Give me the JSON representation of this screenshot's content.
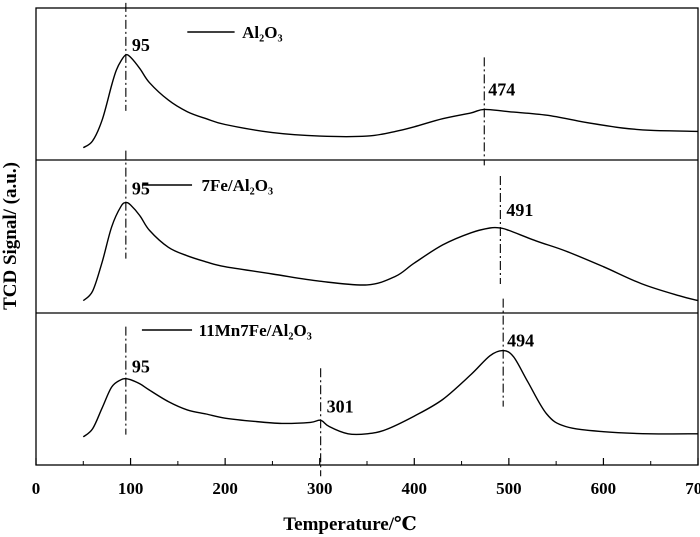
{
  "chart_data": {
    "type": "line",
    "title": "",
    "xlabel": "Temperature/℃",
    "ylabel": "TCD Signal/ (a.u.)",
    "xlim": [
      0,
      700
    ],
    "x_ticks": [
      "0",
      "100",
      "200",
      "300",
      "400",
      "500",
      "600",
      "700"
    ],
    "grid": false,
    "legend_placement": "top-left of each panel",
    "panels": [
      {
        "legend": "Al₂O₃",
        "peaks": [
          {
            "x": 95,
            "label": "95"
          },
          {
            "x": 474,
            "label": "474"
          }
        ],
        "series": {
          "name": "Al₂O₃",
          "x": [
            50,
            60,
            70,
            80,
            85,
            90,
            95,
            100,
            110,
            120,
            140,
            160,
            180,
            200,
            250,
            300,
            350,
            380,
            400,
            430,
            460,
            474,
            500,
            540,
            580,
            620,
            650,
            700
          ],
          "y": [
            0.02,
            0.08,
            0.26,
            0.56,
            0.69,
            0.77,
            0.82,
            0.8,
            0.7,
            0.58,
            0.43,
            0.33,
            0.27,
            0.22,
            0.15,
            0.12,
            0.12,
            0.16,
            0.2,
            0.27,
            0.32,
            0.35,
            0.33,
            0.3,
            0.24,
            0.19,
            0.17,
            0.16
          ]
        }
      },
      {
        "legend": "7Fe/Al₂O₃",
        "peaks": [
          {
            "x": 95,
            "label": "95"
          },
          {
            "x": 491,
            "label": "491"
          }
        ],
        "series": {
          "name": "7Fe/Al₂O₃",
          "x": [
            50,
            60,
            70,
            80,
            90,
            95,
            100,
            110,
            120,
            140,
            160,
            180,
            200,
            250,
            300,
            350,
            380,
            400,
            430,
            460,
            480,
            491,
            500,
            530,
            560,
            600,
            640,
            680,
            700
          ],
          "y": [
            0.02,
            0.1,
            0.34,
            0.63,
            0.8,
            0.83,
            0.81,
            0.72,
            0.6,
            0.46,
            0.39,
            0.34,
            0.3,
            0.24,
            0.18,
            0.15,
            0.22,
            0.33,
            0.48,
            0.58,
            0.62,
            0.62,
            0.6,
            0.51,
            0.43,
            0.3,
            0.16,
            0.06,
            0.02
          ]
        }
      },
      {
        "legend": "11Mn7Fe/Al₂O₃",
        "peaks": [
          {
            "x": 95,
            "label": "95"
          },
          {
            "x": 301,
            "label": "301"
          },
          {
            "x": 494,
            "label": "494"
          }
        ],
        "series": {
          "name": "11Mn7Fe/Al₂O₃",
          "x": [
            50,
            60,
            70,
            80,
            90,
            95,
            100,
            110,
            120,
            140,
            160,
            180,
            200,
            230,
            260,
            290,
            301,
            310,
            330,
            350,
            370,
            400,
            430,
            460,
            480,
            494,
            505,
            520,
            540,
            560,
            600,
            650,
            700
          ],
          "y": [
            0.02,
            0.1,
            0.3,
            0.5,
            0.57,
            0.58,
            0.57,
            0.53,
            0.47,
            0.36,
            0.28,
            0.24,
            0.2,
            0.17,
            0.15,
            0.16,
            0.18,
            0.12,
            0.05,
            0.05,
            0.09,
            0.22,
            0.38,
            0.62,
            0.8,
            0.85,
            0.79,
            0.55,
            0.24,
            0.12,
            0.07,
            0.05,
            0.05
          ]
        }
      }
    ]
  }
}
